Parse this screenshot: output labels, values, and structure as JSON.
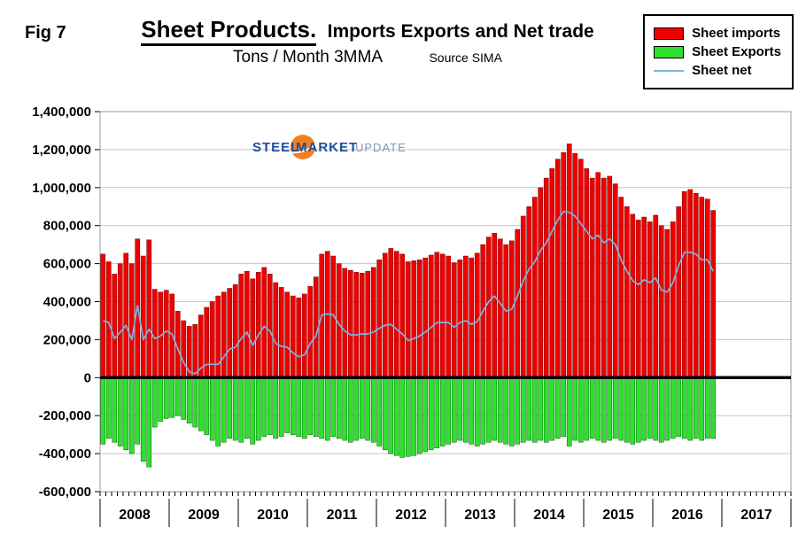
{
  "header": {
    "fig_label": "Fig 7",
    "title_main": "Sheet Products.",
    "title_rest": "Imports Exports and Net trade",
    "subtitle": "Tons / Month 3MMA",
    "source": "Source SIMA"
  },
  "legend": {
    "items": [
      {
        "label": "Sheet imports",
        "swatch": "red-box",
        "color": "#ee0000"
      },
      {
        "label": "Sheet Exports",
        "swatch": "green-box",
        "color": "#2ee02e"
      },
      {
        "label": "Sheet net",
        "swatch": "blue-line",
        "color": "#79b5e3"
      }
    ]
  },
  "watermark": {
    "part1": "STEEL",
    "part2": "MARKET",
    "part3": "UPDATE",
    "color1": "#1d4e9e",
    "color2": "#1d4e9e",
    "color3": "#8097bb",
    "globe_color": "#f28020"
  },
  "chart_data": {
    "type": "bar",
    "title": "Sheet Products. Imports Exports and Net trade",
    "subtitle": "Tons / Month 3MMA",
    "source": "Source SIMA",
    "unit": "tons per month, 3-month moving average",
    "x_start": "2008-01",
    "x_end": "2016-11",
    "axis_years": [
      2008,
      2009,
      2010,
      2011,
      2012,
      2013,
      2014,
      2015,
      2016,
      2017
    ],
    "ylim": [
      -600000,
      1400000
    ],
    "ytick_step": 200000,
    "grid": true,
    "legend_position": "top-right",
    "zero_line": true,
    "values_scale_note": "series values are in thousands of tons/month; multiply by 1000 for axis units",
    "series": [
      {
        "name": "Sheet imports",
        "type": "bar",
        "color": "#ee0000",
        "edge_color": "#7a0000",
        "values_thousands": [
          650,
          610,
          545,
          600,
          655,
          600,
          730,
          640,
          725,
          465,
          450,
          460,
          440,
          350,
          300,
          270,
          280,
          330,
          370,
          400,
          430,
          450,
          470,
          490,
          545,
          560,
          520,
          555,
          580,
          545,
          500,
          475,
          450,
          430,
          420,
          440,
          480,
          530,
          650,
          665,
          640,
          600,
          575,
          565,
          555,
          550,
          560,
          580,
          620,
          655,
          680,
          665,
          650,
          610,
          615,
          620,
          630,
          645,
          660,
          650,
          640,
          605,
          620,
          640,
          630,
          655,
          700,
          740,
          760,
          730,
          700,
          720,
          780,
          850,
          900,
          950,
          1000,
          1050,
          1100,
          1150,
          1185,
          1230,
          1180,
          1150,
          1100,
          1050,
          1080,
          1050,
          1060,
          1020,
          950,
          900,
          860,
          830,
          845,
          820,
          855,
          800,
          780,
          820,
          900,
          980,
          990,
          970,
          950,
          940,
          880
        ]
      },
      {
        "name": "Sheet Exports",
        "type": "bar",
        "color": "#2ee02e",
        "edge_color": "#005c00",
        "values_thousands": [
          -350,
          -320,
          -340,
          -360,
          -380,
          -400,
          -350,
          -440,
          -470,
          -260,
          -230,
          -215,
          -210,
          -200,
          -220,
          -240,
          -260,
          -280,
          -300,
          -330,
          -360,
          -340,
          -320,
          -330,
          -340,
          -320,
          -350,
          -330,
          -310,
          -300,
          -320,
          -310,
          -290,
          -300,
          -310,
          -320,
          -300,
          -310,
          -320,
          -330,
          -310,
          -320,
          -330,
          -340,
          -330,
          -320,
          -330,
          -340,
          -360,
          -380,
          -400,
          -410,
          -420,
          -415,
          -410,
          -400,
          -390,
          -380,
          -370,
          -360,
          -350,
          -340,
          -330,
          -340,
          -350,
          -360,
          -350,
          -340,
          -330,
          -340,
          -350,
          -360,
          -350,
          -340,
          -330,
          -340,
          -330,
          -340,
          -330,
          -320,
          -310,
          -360,
          -330,
          -340,
          -330,
          -320,
          -330,
          -340,
          -330,
          -320,
          -330,
          -340,
          -350,
          -340,
          -330,
          -320,
          -330,
          -340,
          -330,
          -320,
          -310,
          -320,
          -330,
          -320,
          -330,
          -320,
          -320
        ]
      },
      {
        "name": "Sheet net",
        "type": "line",
        "color": "#79b5e3",
        "values_thousands": [
          300,
          290,
          205,
          240,
          275,
          200,
          380,
          200,
          255,
          205,
          220,
          245,
          230,
          150,
          80,
          30,
          20,
          50,
          70,
          70,
          70,
          110,
          150,
          160,
          205,
          240,
          170,
          225,
          270,
          245,
          180,
          165,
          160,
          130,
          110,
          120,
          180,
          220,
          330,
          335,
          330,
          280,
          245,
          225,
          225,
          230,
          230,
          240,
          260,
          275,
          280,
          255,
          230,
          195,
          205,
          220,
          240,
          265,
          290,
          290,
          290,
          265,
          290,
          300,
          280,
          295,
          350,
          400,
          430,
          390,
          350,
          360,
          430,
          510,
          570,
          610,
          670,
          710,
          770,
          830,
          875,
          870,
          850,
          810,
          770,
          730,
          750,
          710,
          730,
          700,
          620,
          560,
          510,
          490,
          515,
          500,
          525,
          460,
          450,
          500,
          590,
          660,
          660,
          650,
          620,
          620,
          560
        ]
      }
    ]
  }
}
